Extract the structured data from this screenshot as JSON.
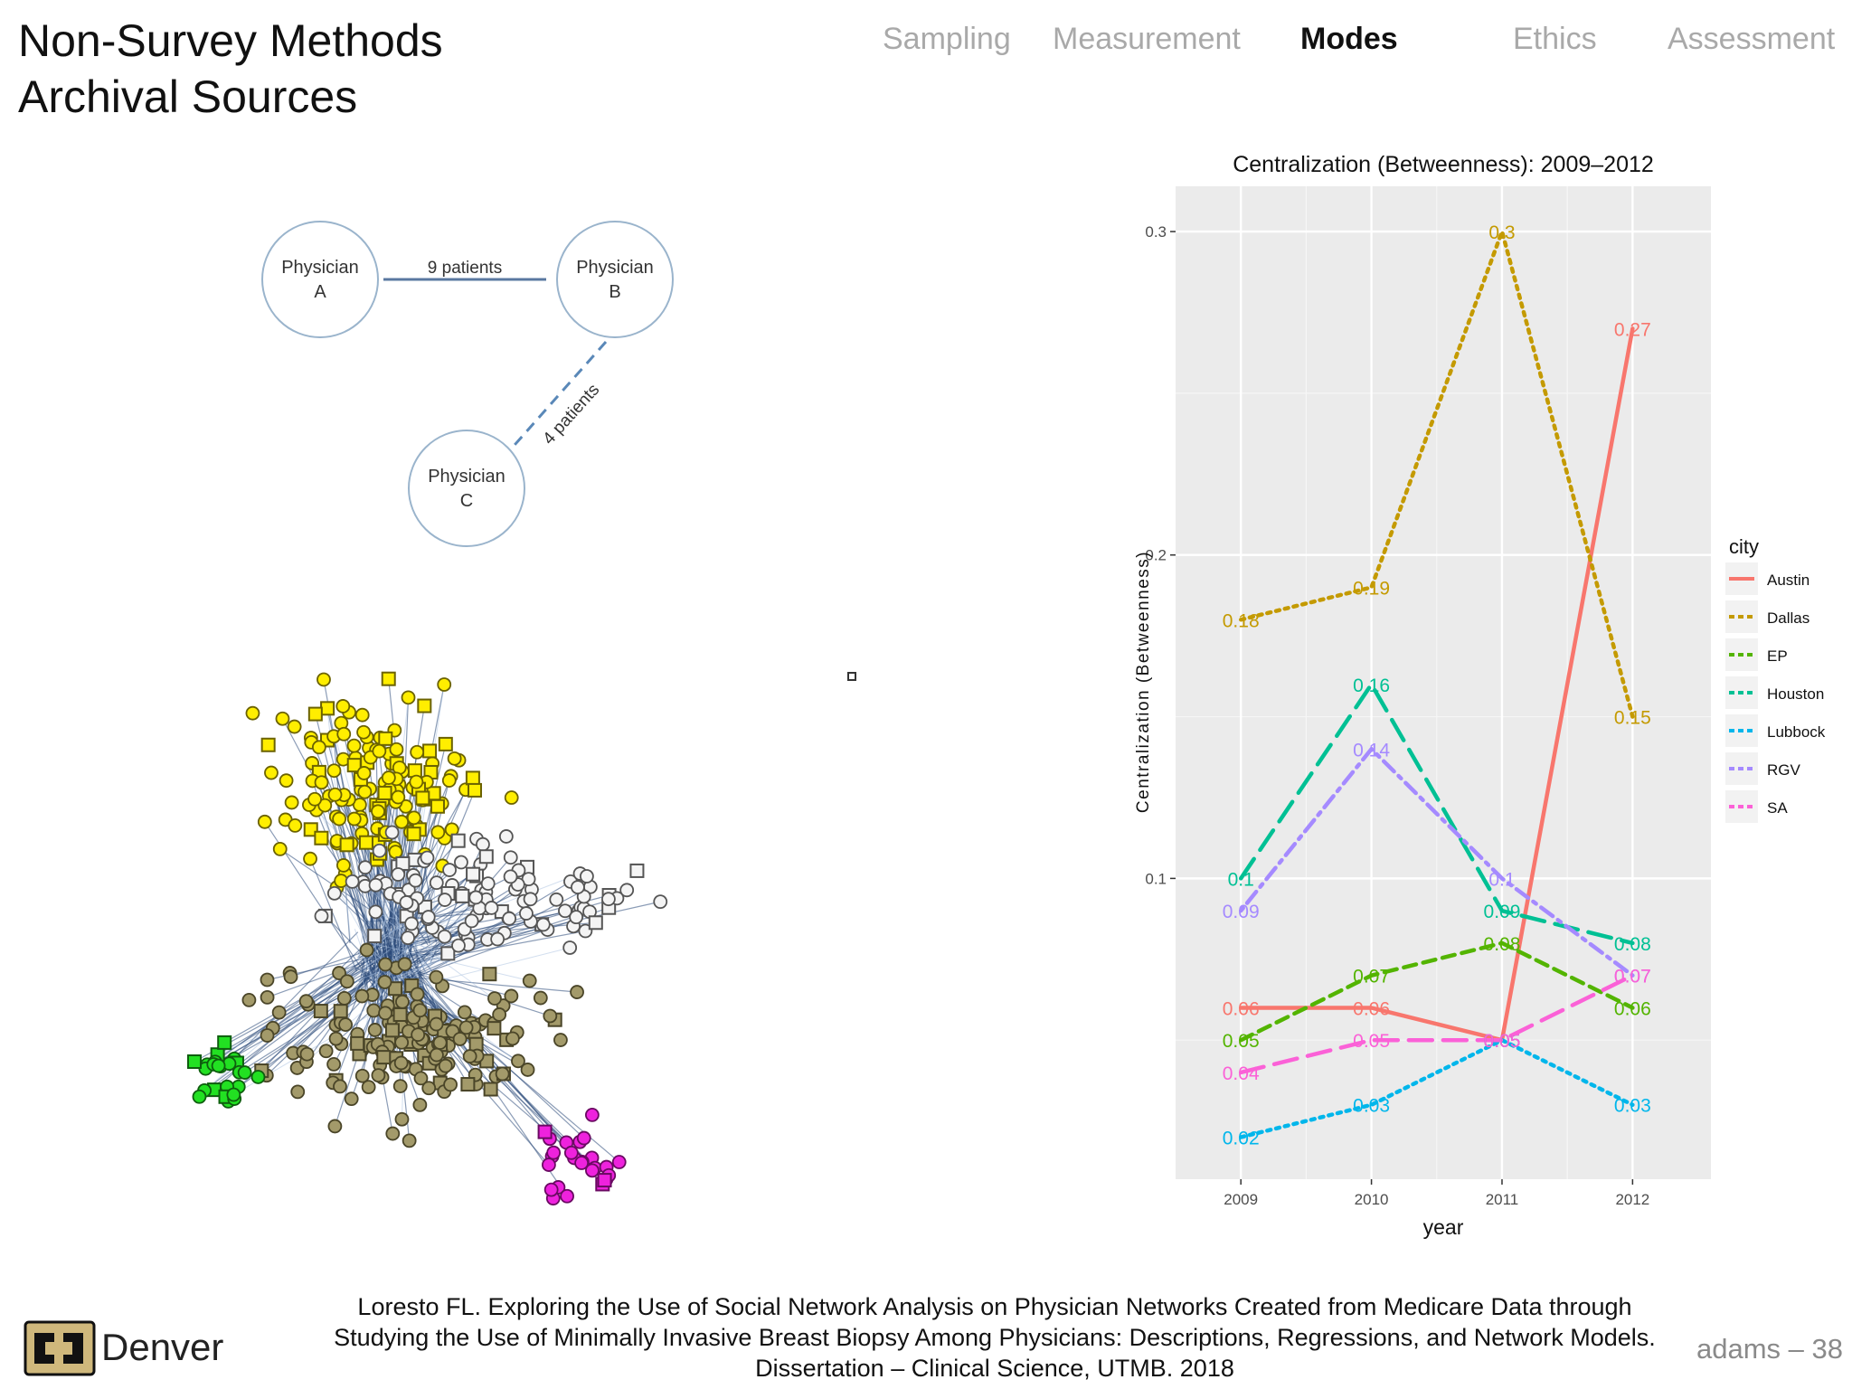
{
  "slide": {
    "title_line1": "Non-Survey Methods",
    "title_line2": "Archival Sources",
    "nav": [
      {
        "label": "Sampling",
        "active": false
      },
      {
        "label": "Measurement",
        "active": false
      },
      {
        "label": "Modes",
        "active": true
      },
      {
        "label": "Ethics",
        "active": false
      },
      {
        "label": "Assessment",
        "active": false
      }
    ],
    "citation_line1": "Loresto FL. Exploring the Use of Social Network Analysis on Physician Networks Created from Medicare Data through",
    "citation_line2": "Studying the Use of Minimally Invasive Breast Biopsy Among Physicians: Descriptions, Regressions, and Network Models.",
    "citation_line3": "Dissertation – Clinical Science, UTMB. 2018",
    "logo_text": "Denver",
    "slide_number": "adams – 38"
  },
  "diagram": {
    "nodes": [
      {
        "id": "A",
        "line1": "Physician",
        "line2": "A"
      },
      {
        "id": "B",
        "line1": "Physician",
        "line2": "B"
      },
      {
        "id": "C",
        "line1": "Physician",
        "line2": "C"
      }
    ],
    "edges": [
      {
        "from": "A",
        "to": "B",
        "label": "9 patients",
        "style": "solid"
      },
      {
        "from": "B",
        "to": "C",
        "label": "4 patients",
        "style": "dashed"
      }
    ]
  },
  "network": {
    "clusters": [
      {
        "name": "yellow",
        "color": "#ffee00",
        "stroke": "#6b6200"
      },
      {
        "name": "white",
        "color": "#f4f4f4",
        "stroke": "#555555"
      },
      {
        "name": "olive",
        "color": "#a39a6a",
        "stroke": "#4a4528"
      },
      {
        "name": "green",
        "color": "#22e022",
        "stroke": "#0e5e0e"
      },
      {
        "name": "magenta",
        "color": "#ee22dd",
        "stroke": "#6a0a62"
      }
    ],
    "edge_color": "#2b4a7a"
  },
  "chart_data": {
    "type": "line",
    "title": "Centralization (Betweenness): 2009–2012",
    "xlabel": "year",
    "ylabel": "Centralization (Betweenness)",
    "x": [
      2009,
      2010,
      2011,
      2012
    ],
    "x_tick_labels": [
      "2009",
      "2010",
      "2011",
      "2012"
    ],
    "y_ticks": [
      0.1,
      0.2,
      0.3
    ],
    "y_tick_labels": [
      "0.1",
      "0.2",
      "0.3"
    ],
    "ylim": [
      0.007,
      0.314
    ],
    "grid": true,
    "legend_title": "city",
    "legend_position": "right",
    "series": [
      {
        "name": "Austin",
        "color": "#f8766d",
        "dash": "solid",
        "values": [
          0.06,
          0.06,
          0.05,
          0.27
        ],
        "labels": [
          "0.06",
          "0.06",
          "0.05",
          "0.27"
        ]
      },
      {
        "name": "Dallas",
        "color": "#c49a00",
        "dash": "dotted",
        "values": [
          0.18,
          0.19,
          0.3,
          0.15
        ],
        "labels": [
          "0.18",
          "0.19",
          "0.3",
          "0.15"
        ]
      },
      {
        "name": "EP",
        "color": "#53b400",
        "dash": "dashed",
        "values": [
          0.05,
          0.07,
          0.08,
          0.06
        ],
        "labels": [
          "0.05",
          "0.07",
          "0.08",
          "0.06"
        ]
      },
      {
        "name": "Houston",
        "color": "#00c094",
        "dash": "longdash",
        "values": [
          0.1,
          0.16,
          0.09,
          0.08
        ],
        "labels": [
          "0.1",
          "0.16",
          "0.09",
          "0.08"
        ]
      },
      {
        "name": "Lubbock",
        "color": "#00b6eb",
        "dash": "dotted",
        "values": [
          0.02,
          0.03,
          0.05,
          0.03
        ],
        "labels": [
          "0.02",
          "0.03",
          "0.05",
          "0.03"
        ]
      },
      {
        "name": "RGV",
        "color": "#a58aff",
        "dash": "dotdash",
        "values": [
          0.09,
          0.14,
          0.1,
          0.07
        ],
        "labels": [
          "0.09",
          "0.14",
          "0.1",
          "0.07"
        ]
      },
      {
        "name": "SA",
        "color": "#fb61d7",
        "dash": "longdash",
        "values": [
          0.04,
          0.05,
          0.05,
          0.07
        ],
        "labels": [
          "0.04",
          "0.05",
          "0.05",
          "0.07"
        ]
      }
    ]
  }
}
